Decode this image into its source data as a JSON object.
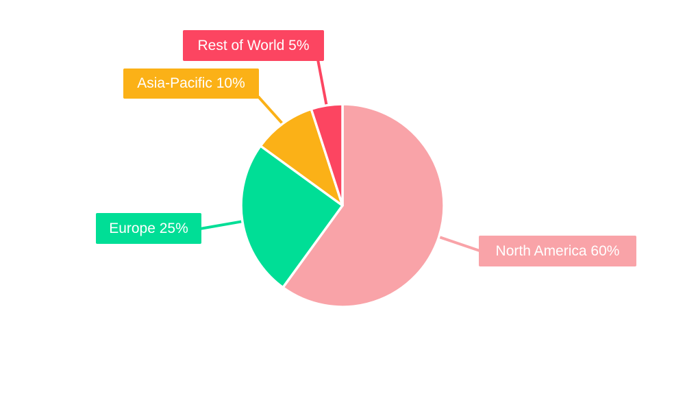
{
  "chart_data": {
    "type": "pie",
    "title": "",
    "start_angle_deg": 0,
    "direction": "clockwise",
    "background_color": "#FFFFFF",
    "label_text_color": "#FFFFFF",
    "slice_separator_color": "#FFFFFF",
    "slices": [
      {
        "label": "North America",
        "value": 60,
        "display": "North America 60%",
        "color": "#F9A3A8"
      },
      {
        "label": "Europe",
        "value": 25,
        "display": "Europe 25%",
        "color": "#00DE96"
      },
      {
        "label": "Asia-Pacific",
        "value": 10,
        "display": "Asia-Pacific 10%",
        "color": "#FBB117"
      },
      {
        "label": "Rest of World",
        "value": 5,
        "display": "Rest of World 5%",
        "color": "#FC4561"
      }
    ]
  }
}
